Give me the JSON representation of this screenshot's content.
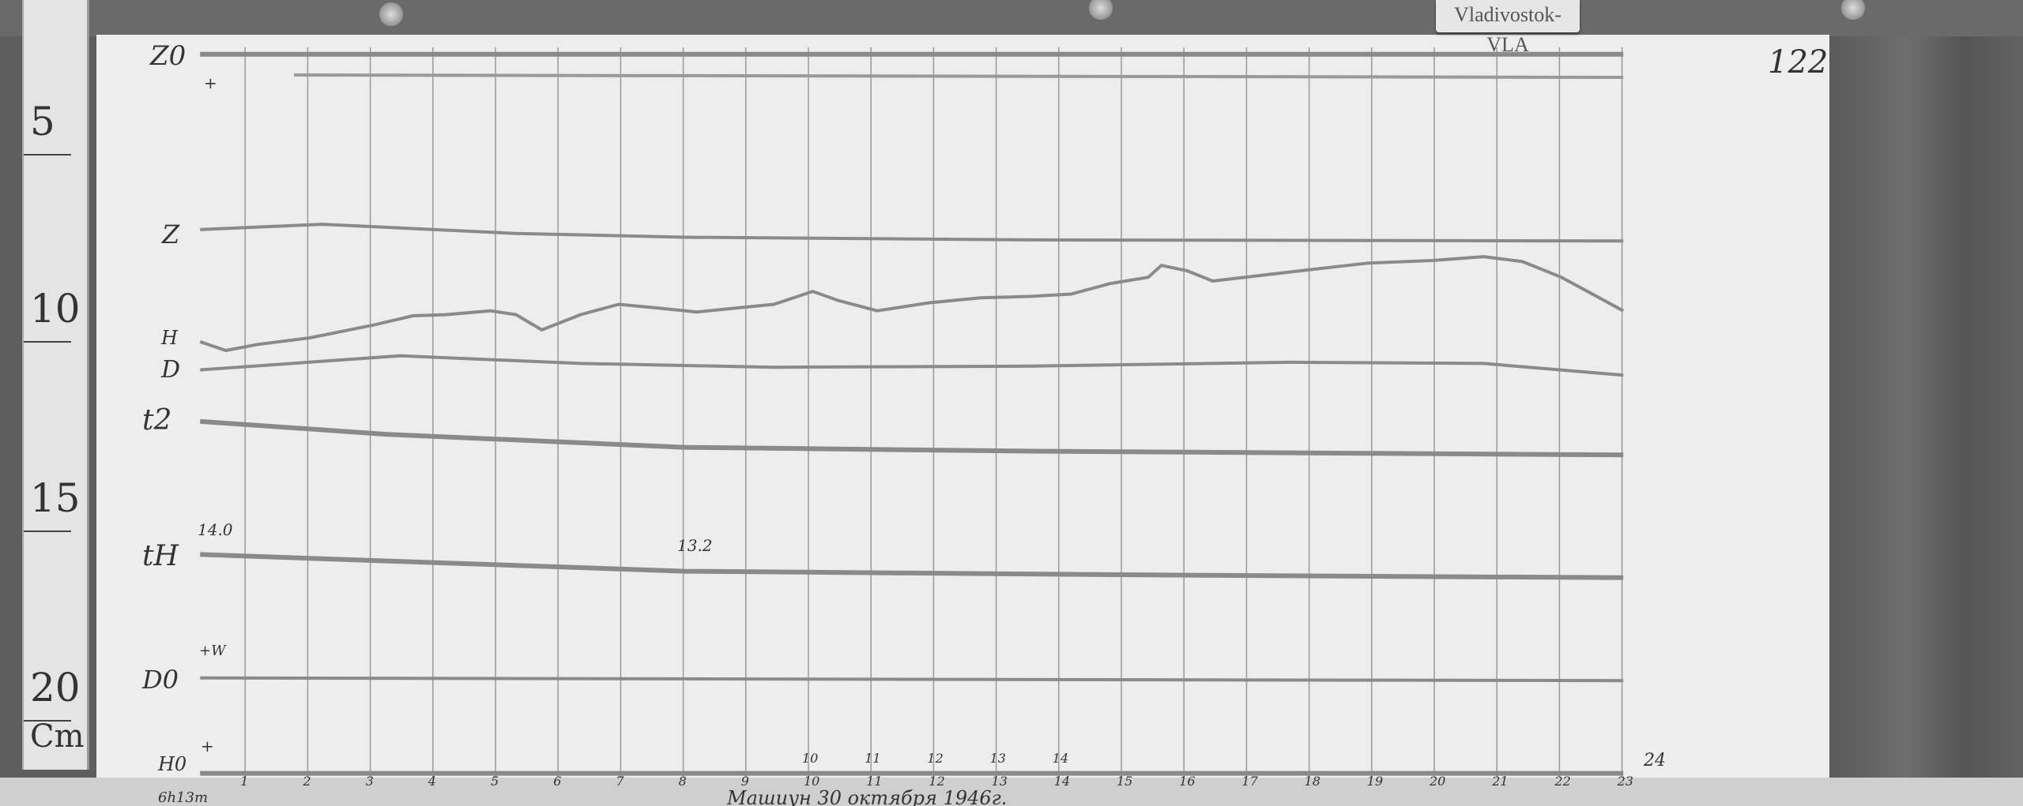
{
  "station_label": "Vladivostok-VLA",
  "sheet_number": "122",
  "ruler": {
    "unit": "Cm",
    "marks": [
      "5",
      "10",
      "15",
      "20"
    ]
  },
  "annotations": {
    "start_time": "6h13m",
    "caption": "Машиун 30 октября 1946г.",
    "tH_start": "14.0",
    "tH_mid": "13.2",
    "d0_sign": "+W",
    "h0_sign": "+",
    "z0_sign": "+"
  },
  "colors": {
    "paper": "#ededed",
    "trace": "#8a8a8a",
    "grid": "#9a9a9a",
    "wood": "#5e5e5e"
  },
  "chart_data": {
    "type": "line",
    "xlabel": "",
    "ylabel": "",
    "xlim": [
      0,
      24
    ],
    "grid": true,
    "hour_ticks_bottom": [
      "1",
      "2",
      "3",
      "4",
      "5",
      "6",
      "7",
      "8",
      "9",
      "10",
      "11",
      "12",
      "13",
      "14",
      "15",
      "16",
      "17",
      "18",
      "19",
      "20",
      "21",
      "22",
      "23"
    ],
    "hour_ticks_top": [
      "10",
      "11",
      "12",
      "13",
      "14"
    ],
    "end_tick": "24",
    "series": [
      {
        "name": "Z0",
        "x": [
          0.28,
          23.02
        ],
        "y": [
          3.14,
          3.14
        ]
      },
      {
        "name": "Z",
        "x": [
          0.28,
          2.24,
          5.33,
          8.01,
          13.57,
          23.02
        ],
        "y": [
          7.74,
          7.6,
          7.84,
          7.94,
          8.01,
          8.04
        ]
      },
      {
        "name": "H",
        "x": [
          0.28,
          0.69,
          1.21,
          2.03,
          3.06,
          3.68,
          4.2,
          4.92,
          5.33,
          5.74,
          6.36,
          6.97,
          7.6,
          8.22,
          8.84,
          9.45,
          10.07,
          10.48,
          11.1,
          11.92,
          12.75,
          13.57,
          14.2,
          14.81,
          15.43,
          15.64,
          16.05,
          16.46,
          17.7,
          18.94,
          19.97,
          20.79,
          21.41,
          22.03,
          23.02
        ],
        "y": [
          10.68,
          10.91,
          10.75,
          10.58,
          10.24,
          10.0,
          9.97,
          9.87,
          9.97,
          10.37,
          9.97,
          9.7,
          9.8,
          9.9,
          9.8,
          9.7,
          9.36,
          9.6,
          9.87,
          9.66,
          9.53,
          9.49,
          9.43,
          9.16,
          8.99,
          8.68,
          8.82,
          9.09,
          8.85,
          8.62,
          8.55,
          8.45,
          8.58,
          8.99,
          9.87
        ]
      },
      {
        "name": "D",
        "x": [
          0.28,
          3.47,
          6.36,
          9.45,
          13.57,
          17.7,
          20.79,
          23.02
        ],
        "y": [
          11.42,
          11.05,
          11.25,
          11.35,
          11.32,
          11.22,
          11.25,
          11.56
        ]
      },
      {
        "name": "t2",
        "x": [
          0.28,
          3.27,
          8.01,
          13.57,
          23.02
        ],
        "y": [
          12.77,
          13.11,
          13.45,
          13.55,
          13.65
        ]
      },
      {
        "name": "tH",
        "x": [
          0.28,
          3.27,
          8.01,
          15.64,
          23.02
        ],
        "y": [
          16.26,
          16.43,
          16.7,
          16.8,
          16.87
        ]
      },
      {
        "name": "D0",
        "x": [
          0.28,
          23.02
        ],
        "y": [
          19.5,
          19.57
        ]
      },
      {
        "name": "H0",
        "x": [
          0.28,
          23.02
        ],
        "y": [
          22.0,
          22.0
        ]
      }
    ]
  }
}
